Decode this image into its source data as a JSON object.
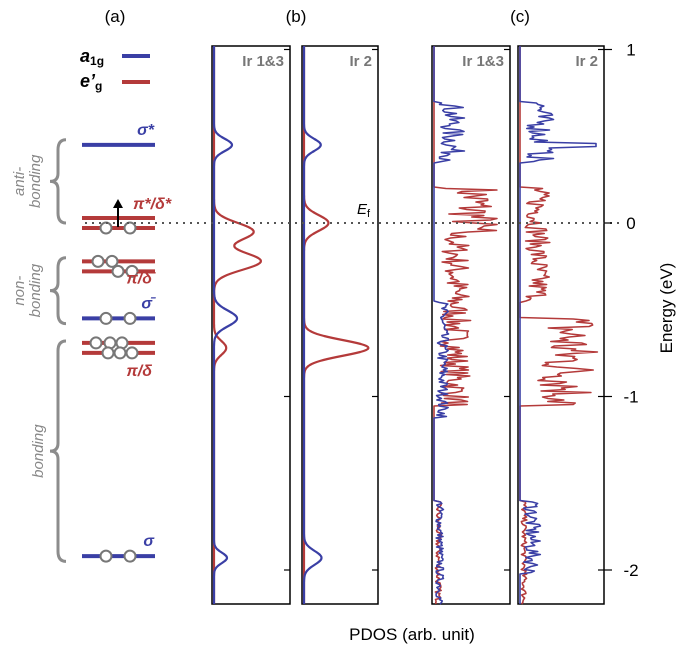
{
  "panels": {
    "a": "(a)",
    "b": "(b)",
    "c": "(c)"
  },
  "legend": [
    {
      "label_main": "a",
      "label_sub": "1g",
      "color": "#3a3fa5"
    },
    {
      "label_main": "e’",
      "label_sub": "g",
      "color": "#b43a3a"
    }
  ],
  "colors": {
    "a1g": "#3a3fa5",
    "eg": "#b43a3a",
    "bracket": "#8c8c8c",
    "frame": "#000000"
  },
  "levels": [
    {
      "label": "σ*",
      "energy": 0.45,
      "color": "blue",
      "bars": 1,
      "circles": 0
    },
    {
      "label": "π*/δ*",
      "energy": 0.0,
      "color": "red",
      "bars": 2,
      "circles": 2,
      "arrow_up": true
    },
    {
      "label": "π̄/δ̄",
      "energy": -0.25,
      "color": "red",
      "bars": 2,
      "circles": 4
    },
    {
      "label": "σ̄",
      "energy": -0.55,
      "color": "blue",
      "bars": 1,
      "circles": 2
    },
    {
      "label": "π/δ",
      "energy": -0.72,
      "color": "red",
      "bars": 2,
      "circles": 6
    },
    {
      "label": "σ",
      "energy": -1.92,
      "color": "blue",
      "bars": 1,
      "circles": 2
    }
  ],
  "brackets": [
    {
      "label_line1": "anti-",
      "label_line2": "bonding",
      "from_energy": 0.48,
      "to_energy": 0.0
    },
    {
      "label_line1": "non-",
      "label_line2": "bonding",
      "from_energy": -0.2,
      "to_energy": -0.58
    },
    {
      "label_line1": "",
      "label_line2": "bonding",
      "from_energy": -0.68,
      "to_energy": -1.95
    }
  ],
  "fermi_label": {
    "main": "E",
    "sub": "f"
  },
  "xlabel": "PDOS (arb. unit)",
  "ylabel": "Energy (eV)",
  "chart_data": {
    "type": "line",
    "ylabel": "Energy (eV)",
    "xlabel": "PDOS (arb. unit)",
    "ylim": [
      -2.2,
      1.0
    ],
    "yticks": [
      1,
      0,
      -1,
      -2
    ],
    "fermi_level": 0,
    "panels": [
      {
        "title": "Ir 1&3",
        "group": "(b)",
        "kind": "gaussian",
        "series": [
          {
            "name": "a1g",
            "peaks": [
              {
                "e": 0.45,
                "h": 0.25,
                "w": 0.035
              },
              {
                "e": -0.55,
                "h": 0.32,
                "w": 0.045
              },
              {
                "e": -1.93,
                "h": 0.18,
                "w": 0.03
              }
            ]
          },
          {
            "name": "e'g",
            "peaks": [
              {
                "e": -0.05,
                "h": 0.55,
                "w": 0.05
              },
              {
                "e": -0.22,
                "h": 0.65,
                "w": 0.05
              },
              {
                "e": -0.72,
                "h": 0.17,
                "w": 0.04
              }
            ]
          }
        ]
      },
      {
        "title": "Ir 2",
        "group": "(b)",
        "kind": "gaussian",
        "series": [
          {
            "name": "a1g",
            "peaks": [
              {
                "e": 0.45,
                "h": 0.24,
                "w": 0.035
              },
              {
                "e": -1.93,
                "h": 0.25,
                "w": 0.04
              }
            ]
          },
          {
            "name": "e'g",
            "peaks": [
              {
                "e": 0.0,
                "h": 0.35,
                "w": 0.045
              },
              {
                "e": -0.72,
                "h": 0.92,
                "w": 0.045
              }
            ]
          }
        ]
      },
      {
        "title": "Ir 1&3",
        "group": "(c)",
        "kind": "noisy",
        "series": [
          {
            "name": "a1g",
            "bands": [
              {
                "from": 0.7,
                "to": 0.35,
                "level": 0.25
              },
              {
                "from": -0.45,
                "to": -1.12,
                "level": 0.12
              },
              {
                "from": -1.6,
                "to": -2.2,
                "level": 0.08
              }
            ]
          },
          {
            "name": "e'g",
            "bands": [
              {
                "from": 0.2,
                "to": -0.05,
                "level": 0.55
              },
              {
                "from": -0.05,
                "to": -1.05,
                "level": 0.3
              },
              {
                "from": -1.6,
                "to": -2.2,
                "level": 0.06
              }
            ]
          }
        ]
      },
      {
        "title": "Ir 2",
        "group": "(c)",
        "kind": "noisy",
        "series": [
          {
            "name": "a1g",
            "bands": [
              {
                "from": 0.7,
                "to": 0.35,
                "level": 0.25
              },
              {
                "from": -1.6,
                "to": -2.02,
                "level": 0.15
              }
            ]
          },
          {
            "name": "e'g",
            "bands": [
              {
                "from": 0.2,
                "to": -0.45,
                "level": 0.22
              },
              {
                "from": -0.55,
                "to": -1.05,
                "level": 0.6
              },
              {
                "from": -1.6,
                "to": -2.2,
                "level": 0.05
              }
            ]
          }
        ],
        "spikes": [
          {
            "name": "a1g",
            "e": 0.45,
            "h": 0.95
          }
        ]
      }
    ]
  }
}
